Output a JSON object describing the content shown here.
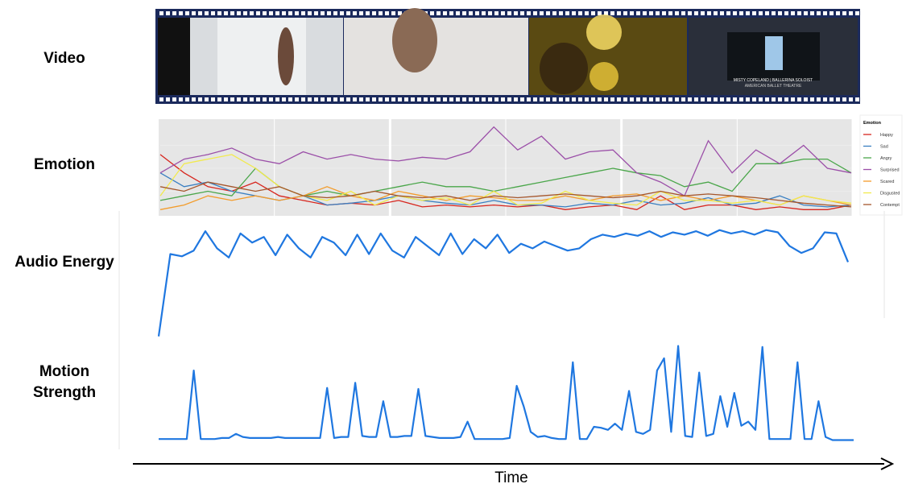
{
  "video": {
    "label": "Video",
    "caption": "MISTY COPELAND | BALLERINA SOLOIST",
    "caption2": "AMERICAN BALLET THEATRE"
  },
  "time_label": "Time",
  "chart_data": [
    {
      "type": "line",
      "title": "Emotion",
      "legend_title": "Emotion",
      "grid": true,
      "ylim": [
        0,
        1
      ],
      "series": [
        {
          "name": "Happy",
          "color": "#d7261e",
          "values": [
            0.65,
            0.45,
            0.3,
            0.25,
            0.35,
            0.2,
            0.15,
            0.1,
            0.12,
            0.1,
            0.15,
            0.08,
            0.1,
            0.08,
            0.1,
            0.08,
            0.1,
            0.05,
            0.08,
            0.1,
            0.05,
            0.2,
            0.05,
            0.1,
            0.1,
            0.05,
            0.08,
            0.05,
            0.05,
            0.1
          ]
        },
        {
          "name": "Sad",
          "color": "#3a7fc1",
          "values": [
            0.45,
            0.3,
            0.35,
            0.25,
            0.2,
            0.15,
            0.2,
            0.1,
            0.12,
            0.15,
            0.2,
            0.15,
            0.12,
            0.1,
            0.15,
            0.1,
            0.1,
            0.08,
            0.12,
            0.1,
            0.15,
            0.1,
            0.12,
            0.18,
            0.1,
            0.12,
            0.2,
            0.1,
            0.08,
            0.1
          ]
        },
        {
          "name": "Angry",
          "color": "#4aa64a",
          "values": [
            0.15,
            0.2,
            0.25,
            0.2,
            0.5,
            0.3,
            0.2,
            0.25,
            0.2,
            0.25,
            0.3,
            0.35,
            0.3,
            0.3,
            0.25,
            0.3,
            0.35,
            0.4,
            0.45,
            0.5,
            0.45,
            0.42,
            0.3,
            0.35,
            0.25,
            0.55,
            0.55,
            0.6,
            0.6,
            0.45
          ]
        },
        {
          "name": "Surprised",
          "color": "#9b4fa8",
          "values": [
            0.45,
            0.6,
            0.65,
            0.72,
            0.6,
            0.55,
            0.68,
            0.6,
            0.65,
            0.6,
            0.58,
            0.62,
            0.6,
            0.68,
            0.95,
            0.7,
            0.85,
            0.6,
            0.68,
            0.7,
            0.45,
            0.35,
            0.2,
            0.8,
            0.45,
            0.7,
            0.55,
            0.75,
            0.5,
            0.45
          ]
        },
        {
          "name": "Scared",
          "color": "#f39c2b",
          "values": [
            0.05,
            0.1,
            0.2,
            0.15,
            0.2,
            0.15,
            0.2,
            0.3,
            0.2,
            0.15,
            0.25,
            0.2,
            0.15,
            0.2,
            0.18,
            0.15,
            0.15,
            0.2,
            0.15,
            0.2,
            0.22,
            0.15,
            0.2,
            0.15,
            0.2,
            0.15,
            0.1,
            0.2,
            0.15,
            0.1
          ]
        },
        {
          "name": "Disgusted",
          "color": "#f2ea4c",
          "values": [
            0.2,
            0.55,
            0.6,
            0.65,
            0.5,
            0.3,
            0.2,
            0.15,
            0.25,
            0.1,
            0.2,
            0.15,
            0.18,
            0.1,
            0.25,
            0.1,
            0.12,
            0.25,
            0.15,
            0.12,
            0.1,
            0.25,
            0.15,
            0.15,
            0.12,
            0.15,
            0.1,
            0.2,
            0.15,
            0.12
          ]
        },
        {
          "name": "Contempt",
          "color": "#a5562c",
          "values": [
            0.3,
            0.25,
            0.35,
            0.3,
            0.25,
            0.3,
            0.2,
            0.18,
            0.2,
            0.25,
            0.2,
            0.18,
            0.2,
            0.15,
            0.2,
            0.18,
            0.2,
            0.22,
            0.2,
            0.18,
            0.2,
            0.25,
            0.2,
            0.22,
            0.2,
            0.18,
            0.15,
            0.12,
            0.1,
            0.08
          ]
        }
      ]
    },
    {
      "type": "line",
      "title": "Audio Energy",
      "color": "#1f77e0",
      "ylim": [
        0,
        1
      ],
      "values": [
        0.03,
        0.75,
        0.73,
        0.78,
        0.95,
        0.8,
        0.72,
        0.93,
        0.85,
        0.9,
        0.74,
        0.92,
        0.8,
        0.72,
        0.9,
        0.85,
        0.74,
        0.92,
        0.75,
        0.93,
        0.78,
        0.72,
        0.9,
        0.82,
        0.74,
        0.93,
        0.75,
        0.88,
        0.8,
        0.92,
        0.76,
        0.84,
        0.8,
        0.86,
        0.82,
        0.78,
        0.8,
        0.88,
        0.92,
        0.9,
        0.93,
        0.91,
        0.95,
        0.9,
        0.94,
        0.92,
        0.95,
        0.91,
        0.96,
        0.93,
        0.95,
        0.92,
        0.96,
        0.94,
        0.82,
        0.76,
        0.8,
        0.94,
        0.93,
        0.68
      ]
    },
    {
      "type": "line",
      "title": "Motion Strength",
      "color": "#1f77e0",
      "ylim": [
        0,
        1
      ],
      "values": [
        0.03,
        0.03,
        0.03,
        0.03,
        0.03,
        0.7,
        0.03,
        0.03,
        0.03,
        0.04,
        0.04,
        0.08,
        0.05,
        0.04,
        0.04,
        0.04,
        0.04,
        0.05,
        0.04,
        0.04,
        0.04,
        0.04,
        0.04,
        0.04,
        0.53,
        0.04,
        0.05,
        0.05,
        0.58,
        0.06,
        0.05,
        0.05,
        0.4,
        0.05,
        0.05,
        0.06,
        0.06,
        0.52,
        0.06,
        0.05,
        0.04,
        0.04,
        0.04,
        0.05,
        0.2,
        0.03,
        0.03,
        0.03,
        0.03,
        0.03,
        0.04,
        0.55,
        0.35,
        0.1,
        0.05,
        0.06,
        0.04,
        0.03,
        0.03,
        0.78,
        0.03,
        0.03,
        0.15,
        0.14,
        0.12,
        0.18,
        0.12,
        0.5,
        0.1,
        0.08,
        0.12,
        0.7,
        0.82,
        0.1,
        0.94,
        0.06,
        0.05,
        0.68,
        0.06,
        0.08,
        0.45,
        0.15,
        0.48,
        0.16,
        0.2,
        0.12,
        0.93,
        0.03,
        0.03,
        0.03,
        0.03,
        0.78,
        0.03,
        0.03,
        0.4,
        0.05,
        0.02,
        0.02,
        0.02,
        0.02
      ]
    }
  ]
}
